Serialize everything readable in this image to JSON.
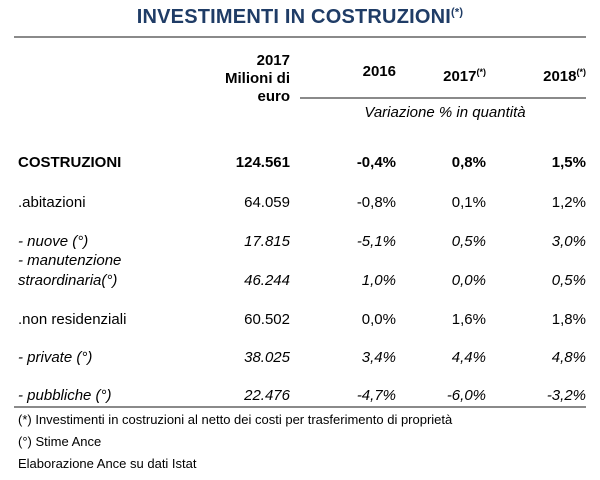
{
  "title": {
    "text": "INVESTIMENTI IN COSTRUZIONI",
    "sup": "(*)"
  },
  "header": {
    "col1": [
      "2017",
      "Milioni di",
      "euro"
    ],
    "col2": "2016",
    "col3": "2017",
    "col3_sup": "(*)",
    "col4": "2018",
    "col4_sup": "(*)",
    "sub": "Variazione % in quantità"
  },
  "rows": [
    {
      "label": "COSTRUZIONI",
      "value": "124.561",
      "c2016": "-0,4%",
      "c2017": "0,8%",
      "c2018": "1,5%"
    },
    {
      "label": ".abitazioni",
      "value": "64.059",
      "c2016": "-0,8%",
      "c2017": "0,1%",
      "c2018": "1,2%"
    },
    {
      "label": " - nuove (°)",
      "value": "17.815",
      "c2016": "-5,1%",
      "c2017": "0,5%",
      "c2018": "3,0%"
    },
    {
      "label1": " - manutenzione",
      "label2": "straordinaria(°)",
      "value": "46.244",
      "c2016": "1,0%",
      "c2017": "0,0%",
      "c2018": "0,5%"
    },
    {
      "label": ".non residenziali",
      "value": "60.502",
      "c2016": "0,0%",
      "c2017": "1,6%",
      "c2018": "1,8%"
    },
    {
      "label": " - private (°)",
      "value": "38.025",
      "c2016": "3,4%",
      "c2017": "4,4%",
      "c2018": "4,8%"
    },
    {
      "label": " - pubbliche (°)",
      "value": "22.476",
      "c2016": "-4,7%",
      "c2017": "-6,0%",
      "c2018": "-3,2%"
    }
  ],
  "notes": [
    "(*) Investimenti in costruzioni al netto dei costi per trasferimento di proprietà",
    "(°) Stime Ance",
    "Elaborazione Ance su dati Istat"
  ]
}
